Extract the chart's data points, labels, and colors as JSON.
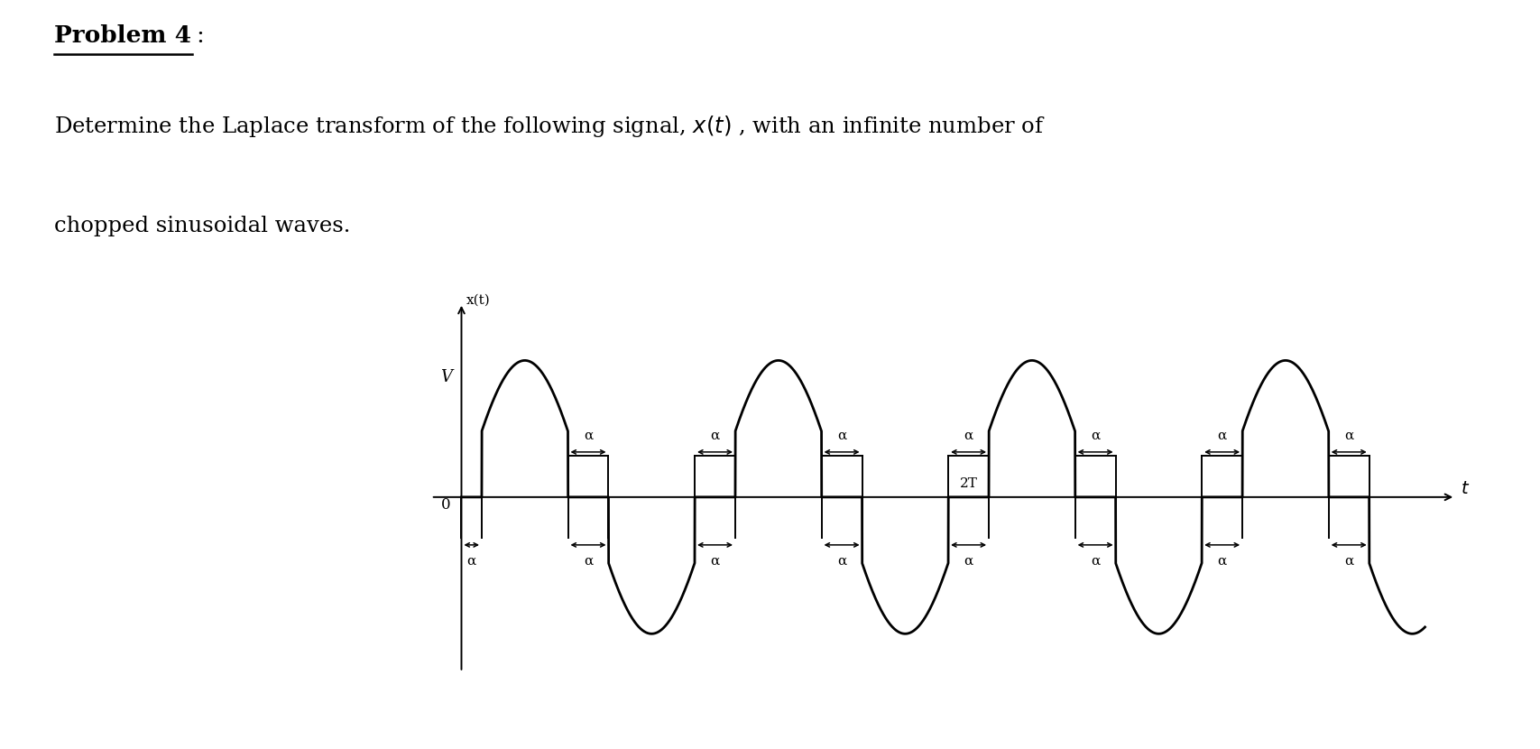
{
  "background_color": "#ffffff",
  "text_color": "#000000",
  "line_color": "#000000",
  "fig_width": 17.07,
  "fig_height": 8.3,
  "dpi": 100,
  "T": 1.0,
  "alpha_hw": 0.08,
  "amplitude": 1.0,
  "t_max": 3.8,
  "title_text": "Problem 4",
  "colon_text": ":",
  "desc1": "Determine the Laplace transform of the following signal, $x(t)$ , with an infinite number of",
  "desc2": "chopped sinusoidal waves.",
  "ylabel_text": "x(t)",
  "V_label": "V",
  "origin_label": "0",
  "twoT_label": "2T",
  "alpha_label": "α",
  "t_label": "t"
}
